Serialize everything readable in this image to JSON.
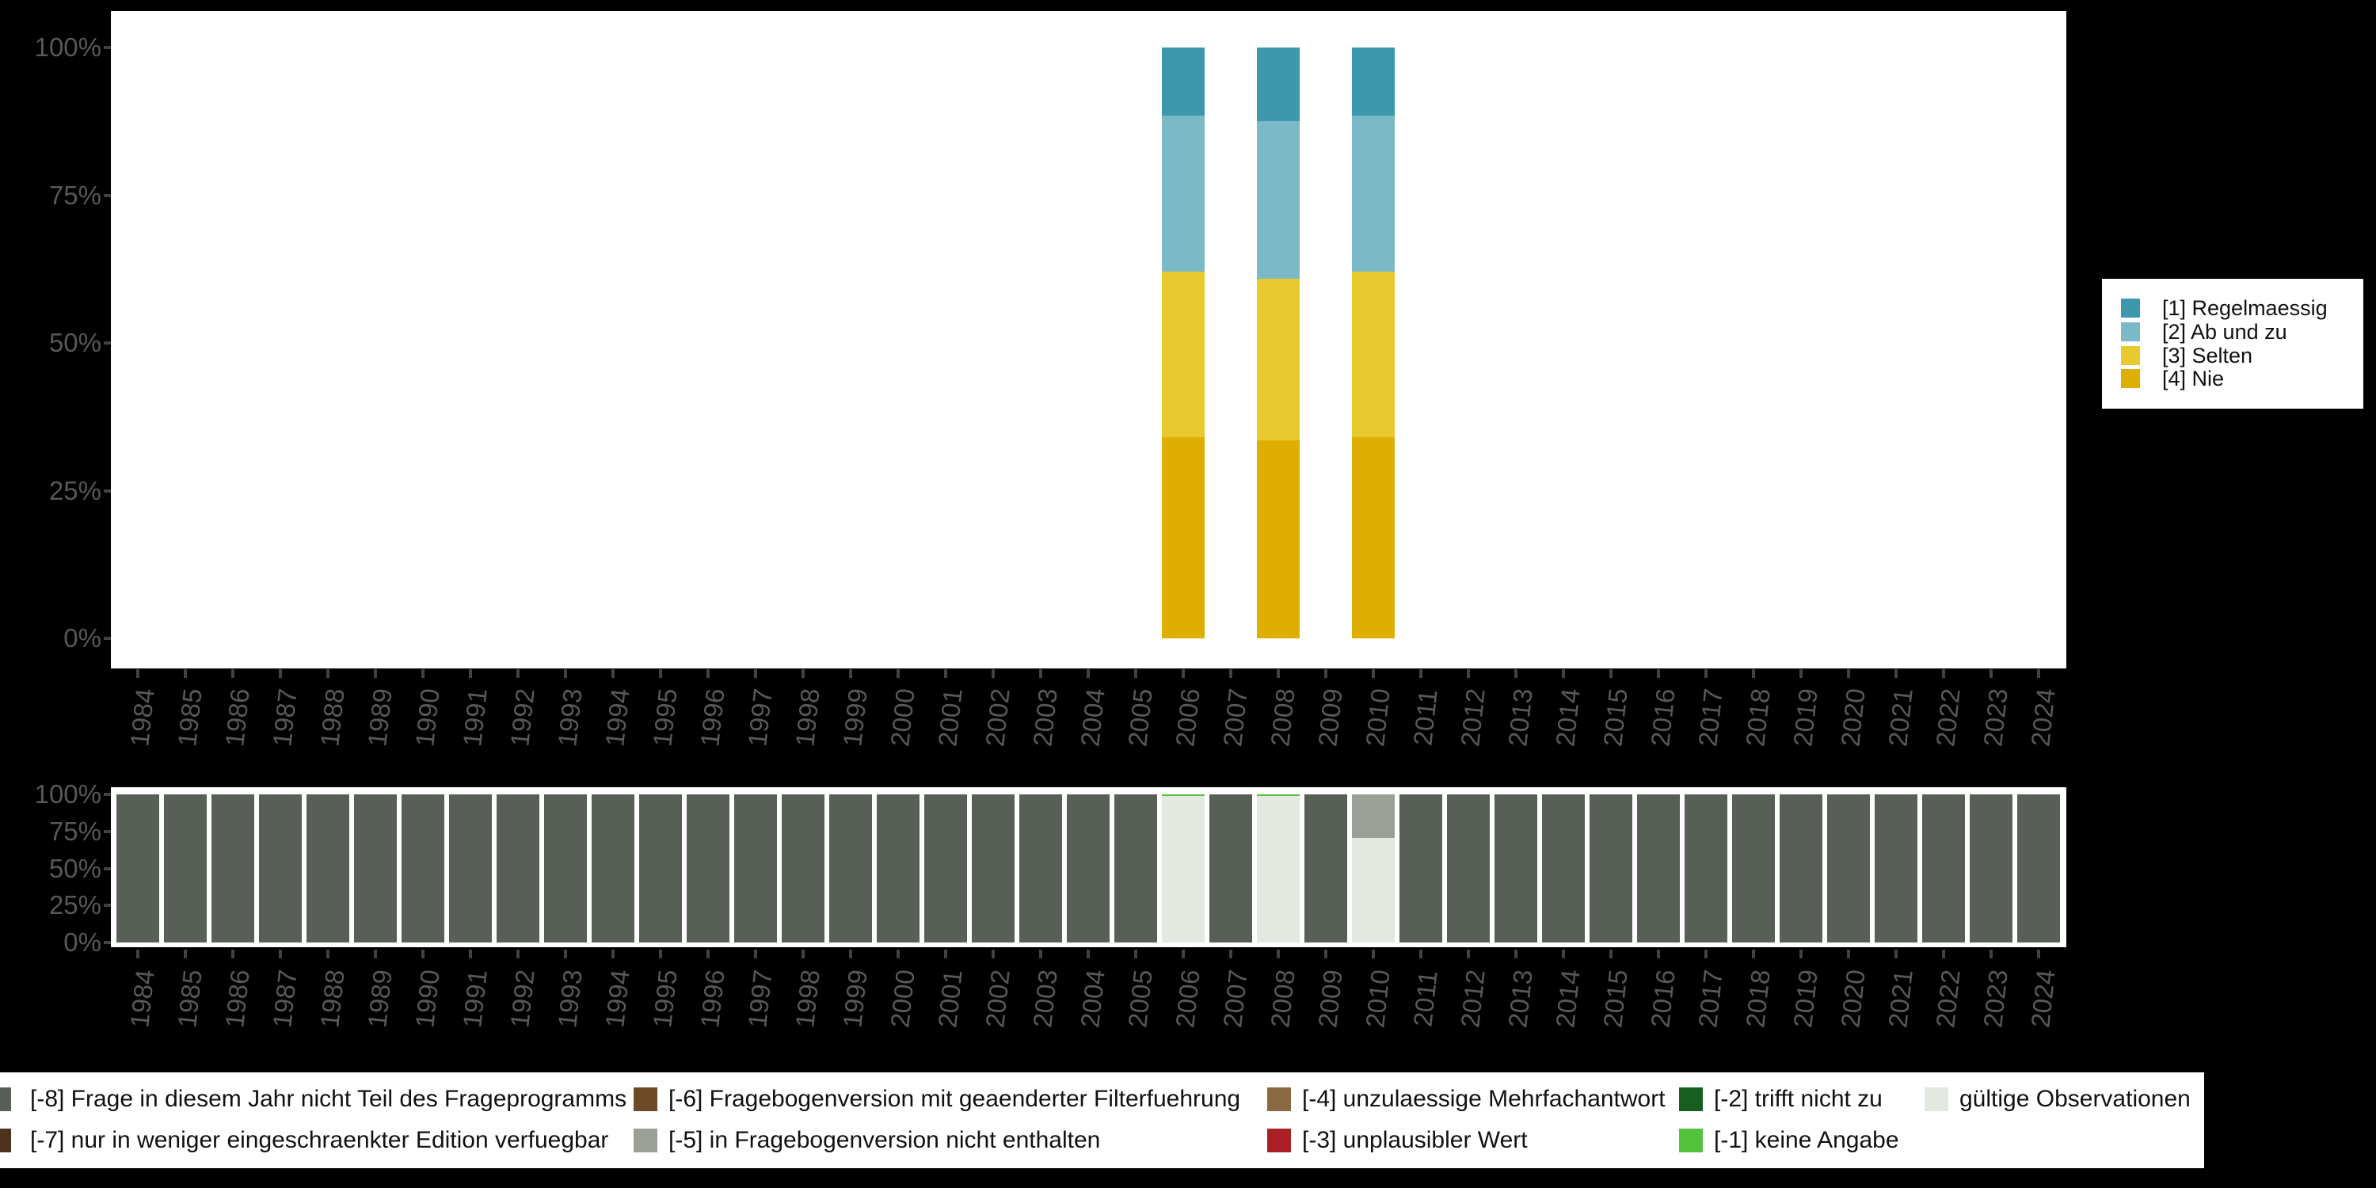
{
  "background_color": "#000000",
  "years": [
    "1984",
    "1985",
    "1986",
    "1987",
    "1988",
    "1989",
    "1990",
    "1991",
    "1992",
    "1993",
    "1994",
    "1995",
    "1996",
    "1997",
    "1998",
    "1999",
    "2000",
    "2001",
    "2002",
    "2003",
    "2004",
    "2005",
    "2006",
    "2007",
    "2008",
    "2009",
    "2010",
    "2011",
    "2012",
    "2013",
    "2014",
    "2015",
    "2016",
    "2017",
    "2018",
    "2019",
    "2020",
    "2021",
    "2022",
    "2023",
    "2024"
  ],
  "chart_data": [
    {
      "name": "answer-distribution",
      "type": "bar",
      "stacked": true,
      "unit": "percent",
      "grid": false,
      "ylim": [
        0,
        100
      ],
      "y_tick_labels": [
        "100%",
        "75%",
        "50%",
        "25%",
        "0%"
      ],
      "x_tick_labels_all_years": true,
      "legend_position": "right",
      "series": [
        {
          "key": "r1",
          "label": "[1] Regelmaessig",
          "color": "#3d98ad",
          "values": {
            "2006": 11.5,
            "2008": 12.4,
            "2010": 11.5
          }
        },
        {
          "key": "r2",
          "label": "[2] Ab und zu",
          "color": "#7cb9c7",
          "values": {
            "2006": 26.4,
            "2008": 26.7,
            "2010": 26.4
          }
        },
        {
          "key": "r3",
          "label": "[3] Selten",
          "color": "#e9ca2e",
          "values": {
            "2006": 28.0,
            "2008": 27.4,
            "2010": 28.1
          }
        },
        {
          "key": "r4",
          "label": "[4] Nie",
          "color": "#dfae02",
          "values": {
            "2006": 34.1,
            "2008": 33.5,
            "2010": 34.0
          }
        }
      ]
    },
    {
      "name": "missing-values-distribution",
      "type": "bar",
      "stacked": true,
      "unit": "percent",
      "grid": false,
      "ylim": [
        0,
        100
      ],
      "y_tick_labels": [
        "100%",
        "75%",
        "50%",
        "25%",
        "0%"
      ],
      "default_segments": [
        {
          "key": "m8",
          "pct": 100
        }
      ],
      "bars": {
        "2006": [
          {
            "key": "m1",
            "pct": 1
          },
          {
            "key": "valid",
            "pct": 99
          }
        ],
        "2008": [
          {
            "key": "m1",
            "pct": 1
          },
          {
            "key": "valid",
            "pct": 99
          }
        ],
        "2010": [
          {
            "key": "m5",
            "pct": 29.4
          },
          {
            "key": "valid",
            "pct": 70.6
          }
        ]
      },
      "legend_position": "bottom",
      "legend": [
        {
          "key": "m8",
          "label": "[-8] Frage in diesem Jahr nicht Teil des Frageprogramms",
          "color": "#575f57",
          "row": 0,
          "col": 0
        },
        {
          "key": "m7",
          "label": "[-7] nur in weniger eingeschraenkter Edition verfuegbar",
          "color": "#4e321d",
          "row": 1,
          "col": 0
        },
        {
          "key": "m6",
          "label": "[-6] Fragebogenversion mit geaenderter Filterfuehrung",
          "color": "#6f4a26",
          "row": 0,
          "col": 1
        },
        {
          "key": "m5",
          "label": "[-5] in Fragebogenversion nicht enthalten",
          "color": "#9aa096",
          "row": 1,
          "col": 1
        },
        {
          "key": "m4",
          "label": "[-4] unzulaessige Mehrfachantwort",
          "color": "#8a6a44",
          "row": 0,
          "col": 2
        },
        {
          "key": "m3",
          "label": "[-3] unplausibler Wert",
          "color": "#aa1f23",
          "row": 1,
          "col": 2
        },
        {
          "key": "m2",
          "label": "[-2] trifft nicht zu",
          "color": "#175e20",
          "row": 0,
          "col": 3
        },
        {
          "key": "m1",
          "label": "[-1] keine Angabe",
          "color": "#53c23c",
          "row": 1,
          "col": 3
        },
        {
          "key": "valid",
          "label": "gültige Observationen",
          "color": "#e3e8e0",
          "row": 0,
          "col": 4
        }
      ]
    }
  ]
}
